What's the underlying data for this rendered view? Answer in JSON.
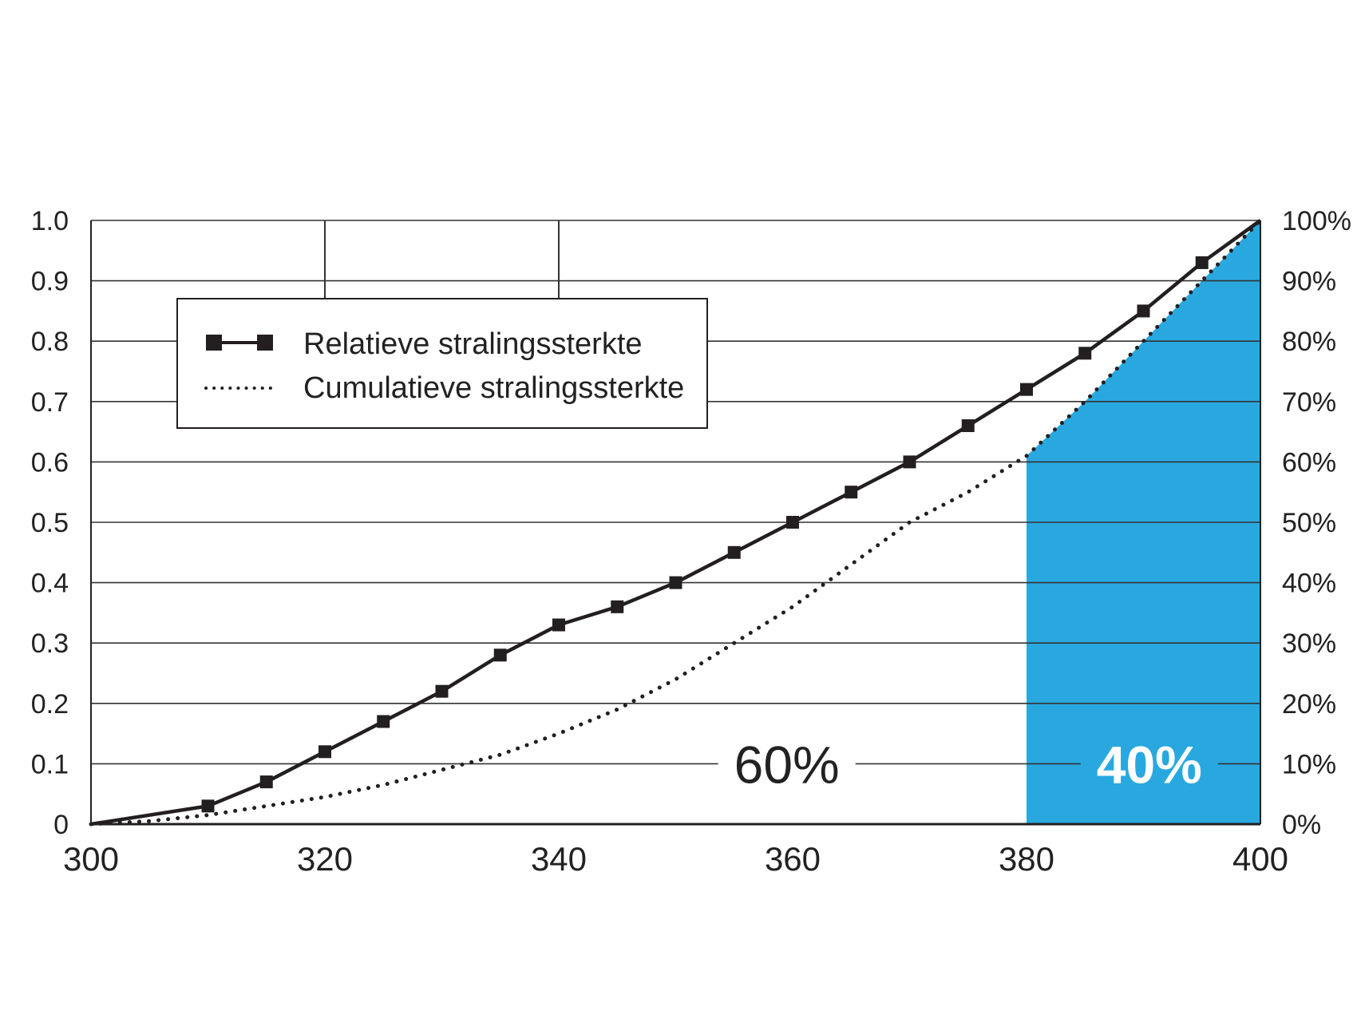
{
  "chart_data": {
    "type": "line",
    "x_ticks": [
      "300",
      "320",
      "340",
      "360",
      "380",
      "400"
    ],
    "xlim": [
      300,
      400
    ],
    "y_left_ticks": [
      "0",
      "0.1",
      "0.2",
      "0.3",
      "0.4",
      "0.5",
      "0.6",
      "0.7",
      "0.8",
      "0.9",
      "1.0"
    ],
    "y_right_ticks": [
      "0%",
      "10%",
      "20%",
      "30%",
      "40%",
      "50%",
      "60%",
      "70%",
      "80%",
      "90%",
      "100%"
    ],
    "ylim": [
      0,
      1
    ],
    "grid": true,
    "legend_position": "top-left",
    "series": [
      {
        "name": "Relatieve stralingssterkte",
        "style": "solid-square-markers",
        "color": "#231f20",
        "x": [
          300,
          310,
          315,
          320,
          325,
          330,
          335,
          340,
          345,
          350,
          355,
          360,
          365,
          370,
          375,
          380,
          385,
          390,
          395,
          400
        ],
        "y": [
          0,
          0.03,
          0.07,
          0.12,
          0.17,
          0.22,
          0.28,
          0.33,
          0.36,
          0.4,
          0.45,
          0.5,
          0.55,
          0.6,
          0.66,
          0.72,
          0.78,
          0.85,
          0.93,
          1.0
        ],
        "markers": [
          false,
          true,
          true,
          true,
          true,
          true,
          true,
          true,
          true,
          true,
          true,
          true,
          true,
          true,
          true,
          true,
          true,
          true,
          true,
          false
        ]
      },
      {
        "name": "Cumulatieve stralingssterkte",
        "style": "dotted",
        "color": "#231f20",
        "x": [
          300,
          305,
          310,
          315,
          320,
          325,
          330,
          335,
          340,
          345,
          350,
          355,
          360,
          365,
          370,
          375,
          380,
          385,
          390,
          395,
          400
        ],
        "y": [
          0,
          0.005,
          0.015,
          0.03,
          0.045,
          0.065,
          0.09,
          0.115,
          0.15,
          0.19,
          0.24,
          0.3,
          0.36,
          0.43,
          0.5,
          0.55,
          0.61,
          0.7,
          0.8,
          0.9,
          1.0
        ]
      }
    ],
    "highlight": {
      "x_from": 380,
      "x_to": 400,
      "color": "#29a8e0"
    },
    "annotations": [
      {
        "text": "60%",
        "x": 359.5,
        "y": 0.1,
        "style": "dark"
      },
      {
        "text": "40%",
        "x": 390.5,
        "y": 0.1,
        "style": "light"
      }
    ],
    "vertical_lines": [
      320,
      340
    ]
  },
  "colors": {
    "line": "#231f20",
    "grid": "#333333",
    "highlight": "#29a8e0",
    "background": "#ffffff"
  }
}
